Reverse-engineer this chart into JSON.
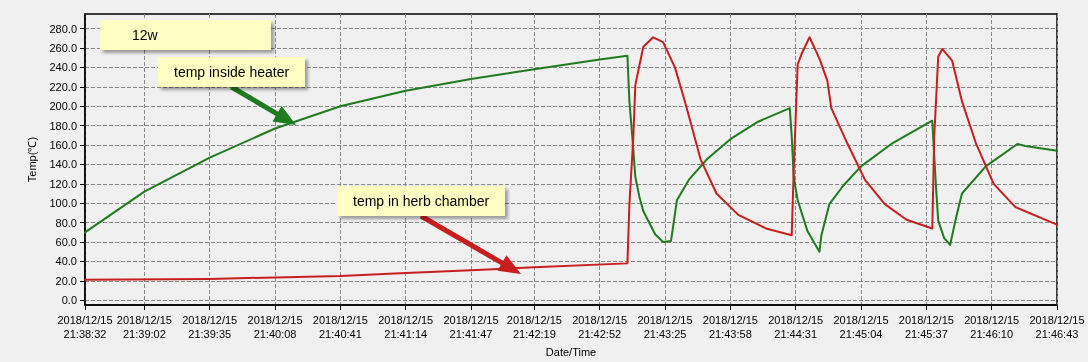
{
  "chart_data": {
    "type": "line",
    "xlabel": "Date/Time",
    "ylabel": "Temp(℃)",
    "xlim": [
      "2018-12-15T21:38:32",
      "2018-12-15T21:46:43"
    ],
    "xticks": [
      {
        "value": "2018-12-15T21:38:32",
        "label": "2018/12/15\n21:38:32"
      },
      {
        "value": "2018-12-15T21:39:02",
        "label": "2018/12/15\n21:39:02"
      },
      {
        "value": "2018-12-15T21:39:35",
        "label": "2018/12/15\n21:39:35"
      },
      {
        "value": "2018-12-15T21:40:08",
        "label": "2018/12/15\n21:40:08"
      },
      {
        "value": "2018-12-15T21:40:41",
        "label": "2018/12/15\n21:40:41"
      },
      {
        "value": "2018-12-15T21:41:14",
        "label": "2018/12/15\n21:41:14"
      },
      {
        "value": "2018-12-15T21:41:47",
        "label": "2018/12/15\n21:41:47"
      },
      {
        "value": "2018-12-15T21:42:19",
        "label": "2018/12/15\n21:42:19"
      },
      {
        "value": "2018-12-15T21:42:52",
        "label": "2018/12/15\n21:42:52"
      },
      {
        "value": "2018-12-15T21:43:25",
        "label": "2018/12/15\n21:43:25"
      },
      {
        "value": "2018-12-15T21:43:58",
        "label": "2018/12/15\n21:43:58"
      },
      {
        "value": "2018-12-15T21:44:31",
        "label": "2018/12/15\n21:44:31"
      },
      {
        "value": "2018-12-15T21:45:04",
        "label": "2018/12/15\n21:45:04"
      },
      {
        "value": "2018-12-15T21:45:37",
        "label": "2018/12/15\n21:45:37"
      },
      {
        "value": "2018-12-15T21:46:10",
        "label": "2018/12/15\n21:46:10"
      },
      {
        "value": "2018-12-15T21:46:43",
        "label": "2018/12/15\n21:46:43"
      }
    ],
    "ylim": [
      -5,
      295
    ],
    "yticks": [
      {
        "value": 0,
        "label": "0.0"
      },
      {
        "value": 20,
        "label": "20.0"
      },
      {
        "value": 40,
        "label": "40.0"
      },
      {
        "value": 60,
        "label": "60.0"
      },
      {
        "value": 80,
        "label": "80.0"
      },
      {
        "value": 100,
        "label": "100.0"
      },
      {
        "value": 120,
        "label": "120.0"
      },
      {
        "value": 140,
        "label": "140.0"
      },
      {
        "value": 160,
        "label": "160.0"
      },
      {
        "value": 180,
        "label": "180.0"
      },
      {
        "value": 200,
        "label": "200.0"
      },
      {
        "value": 220,
        "label": "220.0"
      },
      {
        "value": 240,
        "label": "240.0"
      },
      {
        "value": 260,
        "label": "260.0"
      },
      {
        "value": 280,
        "label": "280.0"
      }
    ],
    "grid": true,
    "marker": "none",
    "line_style": "solid",
    "series": [
      {
        "color": "#1e7b1e",
        "x": [
          "2018-12-15T21:38:32",
          "2018-12-15T21:39:02",
          "2018-12-15T21:39:35",
          "2018-12-15T21:40:08",
          "2018-12-15T21:40:41",
          "2018-12-15T21:41:14",
          "2018-12-15T21:41:47",
          "2018-12-15T21:42:19",
          "2018-12-15T21:42:52",
          "2018-12-15T21:43:06",
          "2018-12-15T21:43:07",
          "2018-12-15T21:43:09",
          "2018-12-15T21:43:10",
          "2018-12-15T21:43:12",
          "2018-12-15T21:43:14",
          "2018-12-15T21:43:20",
          "2018-12-15T21:43:24",
          "2018-12-15T21:43:28",
          "2018-12-15T21:43:31",
          "2018-12-15T21:43:37",
          "2018-12-15T21:43:46",
          "2018-12-15T21:43:58",
          "2018-12-15T21:44:12",
          "2018-12-15T21:44:28",
          "2018-12-15T21:44:29",
          "2018-12-15T21:44:30",
          "2018-12-15T21:44:32",
          "2018-12-15T21:44:37",
          "2018-12-15T21:44:43",
          "2018-12-15T21:44:44",
          "2018-12-15T21:44:48",
          "2018-12-15T21:44:55",
          "2018-12-15T21:45:04",
          "2018-12-15T21:45:20",
          "2018-12-15T21:45:40",
          "2018-12-15T21:45:41",
          "2018-12-15T21:45:42",
          "2018-12-15T21:45:43",
          "2018-12-15T21:45:46",
          "2018-12-15T21:45:49",
          "2018-12-15T21:45:52",
          "2018-12-15T21:45:55",
          "2018-12-15T21:46:07",
          "2018-12-15T21:46:23",
          "2018-12-15T21:46:27",
          "2018-12-15T21:46:43"
        ],
        "values": [
          70,
          112,
          147,
          177,
          200,
          216,
          228,
          238,
          248,
          252,
          205,
          155,
          127,
          107,
          92,
          68,
          60,
          61,
          103,
          124,
          145,
          166,
          184,
          198,
          169,
          127,
          103,
          71,
          50,
          67,
          99,
          118,
          138,
          162,
          185,
          148,
          113,
          82,
          64,
          57,
          85,
          110,
          138,
          161,
          159,
          154
        ]
      },
      {
        "color": "#c81e1e",
        "x": [
          "2018-12-15T21:38:32",
          "2018-12-15T21:39:35",
          "2018-12-15T21:40:41",
          "2018-12-15T21:41:14",
          "2018-12-15T21:41:47",
          "2018-12-15T21:42:19",
          "2018-12-15T21:43:06",
          "2018-12-15T21:43:07",
          "2018-12-15T21:43:09",
          "2018-12-15T21:43:10",
          "2018-12-15T21:43:14",
          "2018-12-15T21:43:19",
          "2018-12-15T21:43:24",
          "2018-12-15T21:43:30",
          "2018-12-15T21:43:35",
          "2018-12-15T21:43:43",
          "2018-12-15T21:43:51",
          "2018-12-15T21:44:02",
          "2018-12-15T21:44:16",
          "2018-12-15T21:44:29",
          "2018-12-15T21:44:30",
          "2018-12-15T21:44:32",
          "2018-12-15T21:44:34",
          "2018-12-15T21:44:38",
          "2018-12-15T21:44:43",
          "2018-12-15T21:44:47",
          "2018-12-15T21:44:49",
          "2018-12-15T21:44:57",
          "2018-12-15T21:45:06",
          "2018-12-15T21:45:16",
          "2018-12-15T21:45:27",
          "2018-12-15T21:45:40",
          "2018-12-15T21:45:41",
          "2018-12-15T21:45:43",
          "2018-12-15T21:45:45",
          "2018-12-15T21:45:50",
          "2018-12-15T21:45:55",
          "2018-12-15T21:46:02",
          "2018-12-15T21:46:11",
          "2018-12-15T21:46:22",
          "2018-12-15T21:46:43"
        ],
        "values": [
          21,
          22,
          25,
          28,
          31,
          34,
          38,
          99,
          169,
          222,
          261,
          271,
          266,
          240,
          205,
          145,
          110,
          88,
          74,
          67,
          134,
          243,
          254,
          271,
          249,
          226,
          198,
          162,
          124,
          99,
          83,
          74,
          169,
          251,
          259,
          247,
          205,
          162,
          120,
          96,
          78
        ]
      }
    ],
    "annotations": [
      "12w",
      "temp inside heater",
      "temp in herb chamber"
    ]
  }
}
